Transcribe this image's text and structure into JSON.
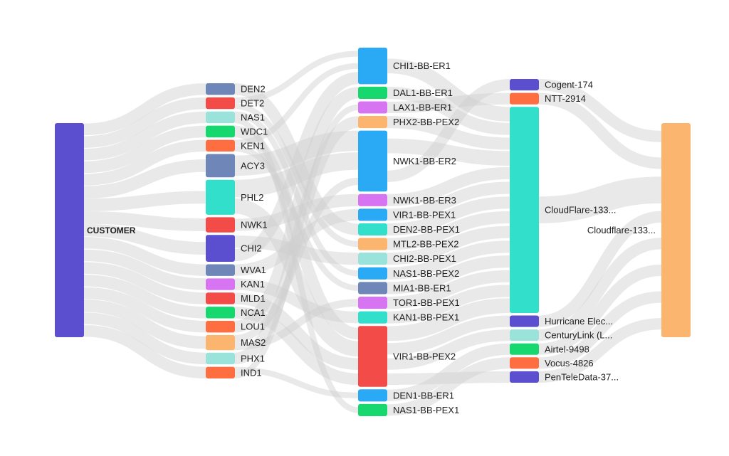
{
  "diagram": {
    "type": "sankey",
    "colors": {
      "purple": "#5b4fcf",
      "slate": "#6f87b8",
      "red": "#f24b48",
      "aqua": "#99e3da",
      "green": "#16d86f",
      "orange": "#ff6e41",
      "teal": "#31dfcb",
      "violet": "#d774f2",
      "sand": "#fbb56f",
      "sky": "#2aaaf4",
      "flow": "#d0d0d0"
    },
    "columns": [
      {
        "nodes": [
          {
            "id": "customer",
            "label": "CUSTOMER",
            "color": "purple",
            "value": 30
          }
        ]
      },
      {
        "nodes": [
          {
            "id": "den2",
            "label": "DEN2",
            "color": "slate",
            "value": 1
          },
          {
            "id": "det2",
            "label": "DET2",
            "color": "red",
            "value": 1
          },
          {
            "id": "nas1",
            "label": "NAS1",
            "color": "aqua",
            "value": 1
          },
          {
            "id": "wdc1",
            "label": "WDC1",
            "color": "green",
            "value": 1
          },
          {
            "id": "ken1",
            "label": "KEN1",
            "color": "orange",
            "value": 1
          },
          {
            "id": "acy3",
            "label": "ACY3",
            "color": "slate",
            "value": 2
          },
          {
            "id": "phl2",
            "label": "PHL2",
            "color": "teal",
            "value": 3
          },
          {
            "id": "nwk1",
            "label": "NWK1",
            "color": "red",
            "value": 1.3
          },
          {
            "id": "chi2",
            "label": "CHI2",
            "color": "purple",
            "value": 2.3
          },
          {
            "id": "wva1",
            "label": "WVA1",
            "color": "slate",
            "value": 1
          },
          {
            "id": "kan1",
            "label": "KAN1",
            "color": "violet",
            "value": 1
          },
          {
            "id": "mld1",
            "label": "MLD1",
            "color": "red",
            "value": 1
          },
          {
            "id": "nca1",
            "label": "NCA1",
            "color": "green",
            "value": 1
          },
          {
            "id": "lou1",
            "label": "LOU1",
            "color": "orange",
            "value": 1
          },
          {
            "id": "mas2",
            "label": "MAS2",
            "color": "sand",
            "value": 1.3
          },
          {
            "id": "phx1",
            "label": "PHX1",
            "color": "aqua",
            "value": 1
          },
          {
            "id": "ind1",
            "label": "IND1",
            "color": "orange",
            "value": 1
          }
        ]
      },
      {
        "nodes": [
          {
            "id": "chi1-bb-er1",
            "label": "CHI1-BB-ER1",
            "color": "sky",
            "value": 3
          },
          {
            "id": "dal1-bb-er1",
            "label": "DAL1-BB-ER1",
            "color": "green",
            "value": 1
          },
          {
            "id": "lax1-bb-er1",
            "label": "LAX1-BB-ER1",
            "color": "violet",
            "value": 1
          },
          {
            "id": "phx2-bb-pex2",
            "label": "PHX2-BB-PEX2",
            "color": "sand",
            "value": 1
          },
          {
            "id": "nwk1-bb-er2",
            "label": "NWK1-BB-ER2",
            "color": "sky",
            "value": 5
          },
          {
            "id": "nwk1-bb-er3",
            "label": "NWK1-BB-ER3",
            "color": "violet",
            "value": 1
          },
          {
            "id": "vir1-bb-pex1",
            "label": "VIR1-BB-PEX1",
            "color": "sky",
            "value": 1
          },
          {
            "id": "den2-bb-pex1",
            "label": "DEN2-BB-PEX1",
            "color": "teal",
            "value": 1
          },
          {
            "id": "mtl2-bb-pex2",
            "label": "MTL2-BB-PEX2",
            "color": "sand",
            "value": 1
          },
          {
            "id": "chi2-bb-pex1",
            "label": "CHI2-BB-PEX1",
            "color": "aqua",
            "value": 1
          },
          {
            "id": "nas1-bb-pex2",
            "label": "NAS1-BB-PEX2",
            "color": "sky",
            "value": 1
          },
          {
            "id": "mia1-bb-er1",
            "label": "MIA1-BB-ER1",
            "color": "slate",
            "value": 1
          },
          {
            "id": "tor1-bb-pex1",
            "label": "TOR1-BB-PEX1",
            "color": "violet",
            "value": 1
          },
          {
            "id": "kan1-bb-pex1",
            "label": "KAN1-BB-PEX1",
            "color": "teal",
            "value": 1
          },
          {
            "id": "vir1-bb-pex2",
            "label": "VIR1-BB-PEX2",
            "color": "red",
            "value": 5
          },
          {
            "id": "den1-bb-er1",
            "label": "DEN1-BB-ER1",
            "color": "sky",
            "value": 1
          },
          {
            "id": "nas1-bb-pex1",
            "label": "NAS1-BB-PEX1",
            "color": "green",
            "value": 1
          }
        ]
      },
      {
        "nodes": [
          {
            "id": "cogent",
            "label": "Cogent-174",
            "color": "purple",
            "value": 1
          },
          {
            "id": "ntt",
            "label": "NTT-2914",
            "color": "orange",
            "value": 1
          },
          {
            "id": "cloudflare-133",
            "label": "CloudFlare-133...",
            "color": "teal",
            "value": 18
          },
          {
            "id": "hurricane",
            "label": "Hurricane Elec...",
            "color": "purple",
            "value": 1
          },
          {
            "id": "centurylink",
            "label": "CenturyLink (L...",
            "color": "aqua",
            "value": 1
          },
          {
            "id": "airtel",
            "label": "Airtel-9498",
            "color": "green",
            "value": 1
          },
          {
            "id": "vocus",
            "label": "Vocus-4826",
            "color": "orange",
            "value": 1
          },
          {
            "id": "penteledata",
            "label": "PenTeleData-37...",
            "color": "purple",
            "value": 1
          }
        ]
      },
      {
        "nodes": [
          {
            "id": "cloudflare-final",
            "label": "Cloudflare-133...",
            "color": "sand",
            "value": 30
          }
        ]
      }
    ],
    "links": [
      [
        "customer",
        "den2"
      ],
      [
        "customer",
        "det2"
      ],
      [
        "customer",
        "nas1"
      ],
      [
        "customer",
        "wdc1"
      ],
      [
        "customer",
        "ken1"
      ],
      [
        "customer",
        "acy3"
      ],
      [
        "customer",
        "phl2"
      ],
      [
        "customer",
        "nwk1"
      ],
      [
        "customer",
        "chi2"
      ],
      [
        "customer",
        "wva1"
      ],
      [
        "customer",
        "kan1"
      ],
      [
        "customer",
        "mld1"
      ],
      [
        "customer",
        "nca1"
      ],
      [
        "customer",
        "lou1"
      ],
      [
        "customer",
        "mas2"
      ],
      [
        "customer",
        "phx1"
      ],
      [
        "customer",
        "ind1"
      ],
      [
        "den2",
        "den2-bb-pex1"
      ],
      [
        "det2",
        "chi1-bb-er1"
      ],
      [
        "nas1",
        "nas1-bb-pex2"
      ],
      [
        "wdc1",
        "vir1-bb-pex2"
      ],
      [
        "ken1",
        "chi1-bb-er1"
      ],
      [
        "acy3",
        "nwk1-bb-er2"
      ],
      [
        "phl2",
        "nwk1-bb-er2"
      ],
      [
        "phl2",
        "vir1-bb-pex2"
      ],
      [
        "nwk1",
        "nwk1-bb-er3"
      ],
      [
        "chi2",
        "chi2-bb-pex1"
      ],
      [
        "chi2",
        "chi1-bb-er1"
      ],
      [
        "wva1",
        "vir1-bb-pex1"
      ],
      [
        "kan1",
        "kan1-bb-pex1"
      ],
      [
        "mld1",
        "vir1-bb-pex2"
      ],
      [
        "nca1",
        "vir1-bb-pex2"
      ],
      [
        "lou1",
        "dal1-bb-er1"
      ],
      [
        "mas2",
        "nwk1-bb-er2"
      ],
      [
        "mas2",
        "tor1-bb-pex1"
      ],
      [
        "phx1",
        "phx2-bb-pex2"
      ],
      [
        "ind1",
        "den1-bb-er1"
      ],
      [
        "ind1",
        "lax1-bb-er1"
      ],
      [
        "det2",
        "mtl2-bb-pex2"
      ],
      [
        "ken1",
        "mia1-bb-er1"
      ],
      [
        "nas1",
        "nas1-bb-pex1"
      ],
      [
        "chi1-bb-er1",
        "cloudflare-133"
      ],
      [
        "dal1-bb-er1",
        "cloudflare-133"
      ],
      [
        "lax1-bb-er1",
        "ntt"
      ],
      [
        "phx2-bb-pex2",
        "cloudflare-133"
      ],
      [
        "nwk1-bb-er2",
        "cloudflare-133"
      ],
      [
        "nwk1-bb-er2",
        "cogent"
      ],
      [
        "nwk1-bb-er3",
        "cloudflare-133"
      ],
      [
        "vir1-bb-pex1",
        "cloudflare-133"
      ],
      [
        "den2-bb-pex1",
        "cloudflare-133"
      ],
      [
        "mtl2-bb-pex2",
        "cloudflare-133"
      ],
      [
        "chi2-bb-pex1",
        "cloudflare-133"
      ],
      [
        "nas1-bb-pex2",
        "cloudflare-133"
      ],
      [
        "mia1-bb-er1",
        "cloudflare-133"
      ],
      [
        "tor1-bb-pex1",
        "cloudflare-133"
      ],
      [
        "kan1-bb-pex1",
        "cloudflare-133"
      ],
      [
        "vir1-bb-pex2",
        "cloudflare-133"
      ],
      [
        "vir1-bb-pex2",
        "hurricane"
      ],
      [
        "vir1-bb-pex2",
        "centurylink"
      ],
      [
        "den1-bb-er1",
        "airtel"
      ],
      [
        "nas1-bb-pex1",
        "vocus"
      ],
      [
        "vir1-bb-pex2",
        "penteledata"
      ],
      [
        "cogent",
        "cloudflare-final"
      ],
      [
        "ntt",
        "cloudflare-final"
      ],
      [
        "cloudflare-133",
        "cloudflare-final"
      ],
      [
        "hurricane",
        "cloudflare-final"
      ],
      [
        "centurylink",
        "cloudflare-final"
      ],
      [
        "airtel",
        "cloudflare-final"
      ],
      [
        "vocus",
        "cloudflare-final"
      ],
      [
        "penteledata",
        "cloudflare-final"
      ]
    ]
  }
}
